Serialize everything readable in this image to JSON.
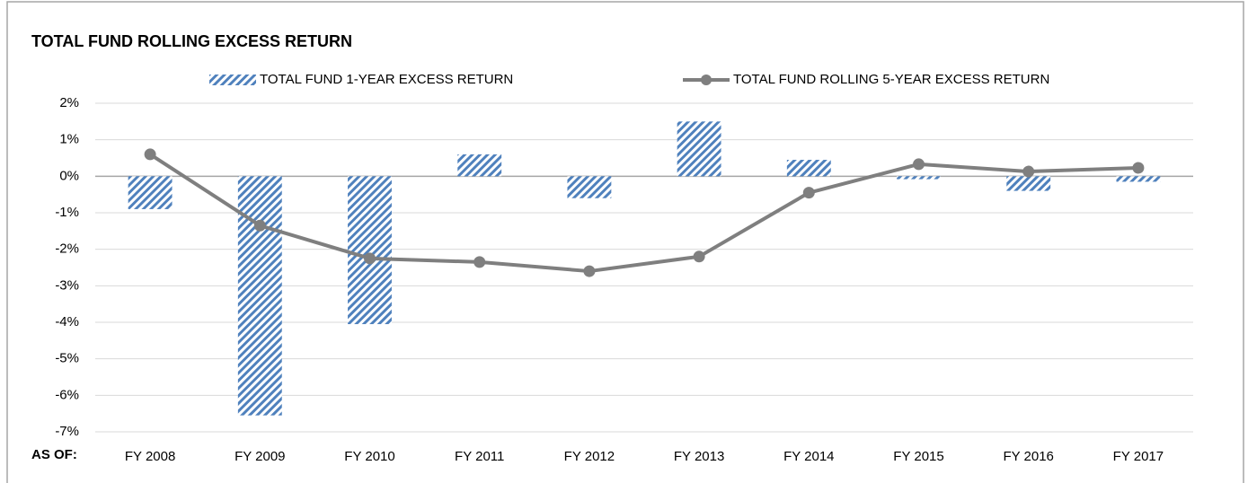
{
  "chart_data": {
    "type": "bar",
    "title": "TOTAL FUND ROLLING EXCESS RETURN",
    "xlabel": "AS OF:",
    "categories": [
      "FY 2008",
      "FY 2009",
      "FY 2010",
      "FY 2011",
      "FY 2012",
      "FY 2013",
      "FY 2014",
      "FY 2015",
      "FY 2016",
      "FY 2017"
    ],
    "series": [
      {
        "name": "TOTAL FUND 1-YEAR EXCESS RETURN",
        "type": "bar",
        "color": "#4f81bd",
        "values": [
          -0.9,
          -6.55,
          -4.05,
          0.6,
          -0.6,
          1.5,
          0.45,
          -0.08,
          -0.4,
          -0.15
        ]
      },
      {
        "name": "TOTAL FUND ROLLING 5-YEAR EXCESS RETURN",
        "type": "line",
        "color": "#7f7f7f",
        "values": [
          0.6,
          -1.35,
          -2.25,
          -2.35,
          -2.6,
          -2.2,
          -0.45,
          0.33,
          0.13,
          0.23
        ]
      }
    ],
    "ylim": [
      -7,
      2
    ],
    "yticks": [
      {
        "value": 2,
        "label": "2%"
      },
      {
        "value": 1,
        "label": "1%"
      },
      {
        "value": 0,
        "label": "0%"
      },
      {
        "value": -1,
        "label": "-1%"
      },
      {
        "value": -2,
        "label": "-2%"
      },
      {
        "value": -3,
        "label": "-3%"
      },
      {
        "value": -4,
        "label": "-4%"
      },
      {
        "value": -5,
        "label": "-5%"
      },
      {
        "value": -6,
        "label": "-6%"
      },
      {
        "value": -7,
        "label": "-7%"
      }
    ],
    "grid": true,
    "legend": "top"
  }
}
